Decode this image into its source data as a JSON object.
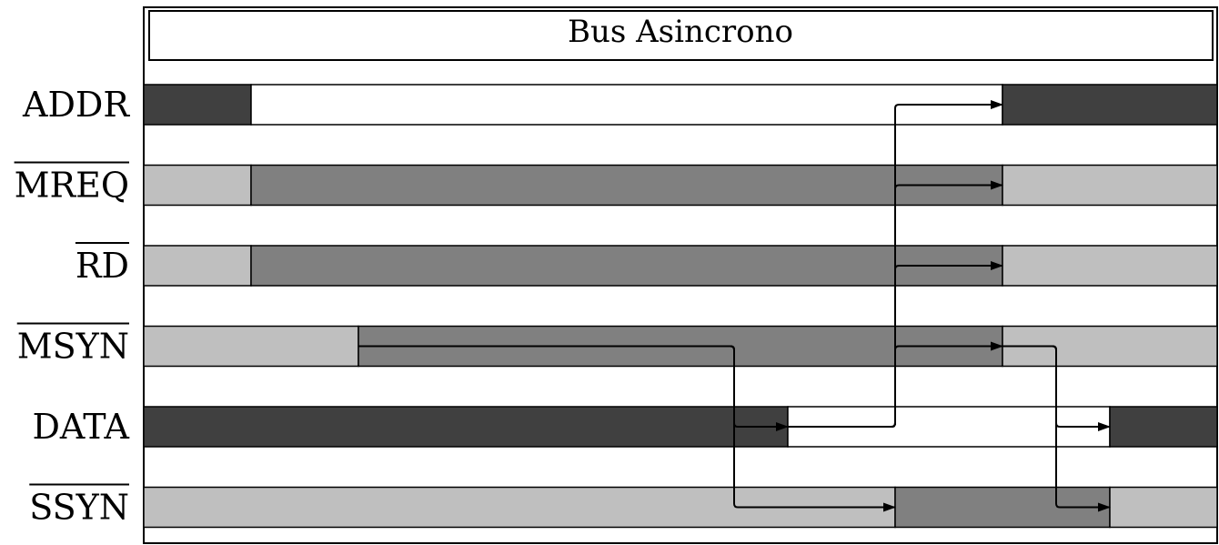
{
  "title": "Bus Asincrono",
  "colors": {
    "dark": "#404040",
    "mid": "#808080",
    "light": "#bfbfbf",
    "white": "#ffffff"
  },
  "signals": [
    {
      "name": "ADDR",
      "overline": false,
      "segments": [
        {
          "t0": 0,
          "t1": 1,
          "fill": "dark"
        },
        {
          "t0": 1,
          "t1": 8,
          "fill": "white"
        },
        {
          "t0": 8,
          "t1": 10,
          "fill": "dark"
        }
      ]
    },
    {
      "name": "MREQ",
      "overline": true,
      "segments": [
        {
          "t0": 0,
          "t1": 1,
          "fill": "light"
        },
        {
          "t0": 1,
          "t1": 8,
          "fill": "mid"
        },
        {
          "t0": 8,
          "t1": 10,
          "fill": "light"
        }
      ]
    },
    {
      "name": "RD",
      "overline": true,
      "segments": [
        {
          "t0": 0,
          "t1": 1,
          "fill": "light"
        },
        {
          "t0": 1,
          "t1": 8,
          "fill": "mid"
        },
        {
          "t0": 8,
          "t1": 10,
          "fill": "light"
        }
      ]
    },
    {
      "name": "MSYN",
      "overline": true,
      "segments": [
        {
          "t0": 0,
          "t1": 2,
          "fill": "light"
        },
        {
          "t0": 2,
          "t1": 8,
          "fill": "mid"
        },
        {
          "t0": 8,
          "t1": 10,
          "fill": "light"
        }
      ]
    },
    {
      "name": "DATA",
      "overline": false,
      "segments": [
        {
          "t0": 0,
          "t1": 6,
          "fill": "dark"
        },
        {
          "t0": 6,
          "t1": 9,
          "fill": "white"
        },
        {
          "t0": 9,
          "t1": 10,
          "fill": "dark"
        }
      ]
    },
    {
      "name": "SSYN",
      "overline": true,
      "segments": [
        {
          "t0": 0,
          "t1": 7,
          "fill": "light"
        },
        {
          "t0": 7,
          "t1": 9,
          "fill": "mid"
        },
        {
          "t0": 9,
          "t1": 10,
          "fill": "light"
        }
      ]
    }
  ],
  "arrows": [
    {
      "from_signal": 3,
      "from_t": 2,
      "turn_t": 5.5,
      "to_signal": 4,
      "to_t": 6
    },
    {
      "from_signal": 3,
      "from_t": 2,
      "turn_t": 5.5,
      "to_signal": 5,
      "to_t": 7
    },
    {
      "from_signal": 4,
      "from_t": 6,
      "turn_t": 7,
      "to_signal": 0,
      "to_t": 8
    },
    {
      "from_signal": 4,
      "from_t": 6,
      "turn_t": 7,
      "to_signal": 1,
      "to_t": 8
    },
    {
      "from_signal": 4,
      "from_t": 6,
      "turn_t": 7,
      "to_signal": 2,
      "to_t": 8
    },
    {
      "from_signal": 4,
      "from_t": 6,
      "turn_t": 7,
      "to_signal": 3,
      "to_t": 8
    },
    {
      "from_signal": 3,
      "from_t": 8,
      "turn_t": 8.5,
      "to_signal": 4,
      "to_t": 9
    },
    {
      "from_signal": 3,
      "from_t": 8,
      "turn_t": 8.5,
      "to_signal": 5,
      "to_t": 9
    }
  ]
}
